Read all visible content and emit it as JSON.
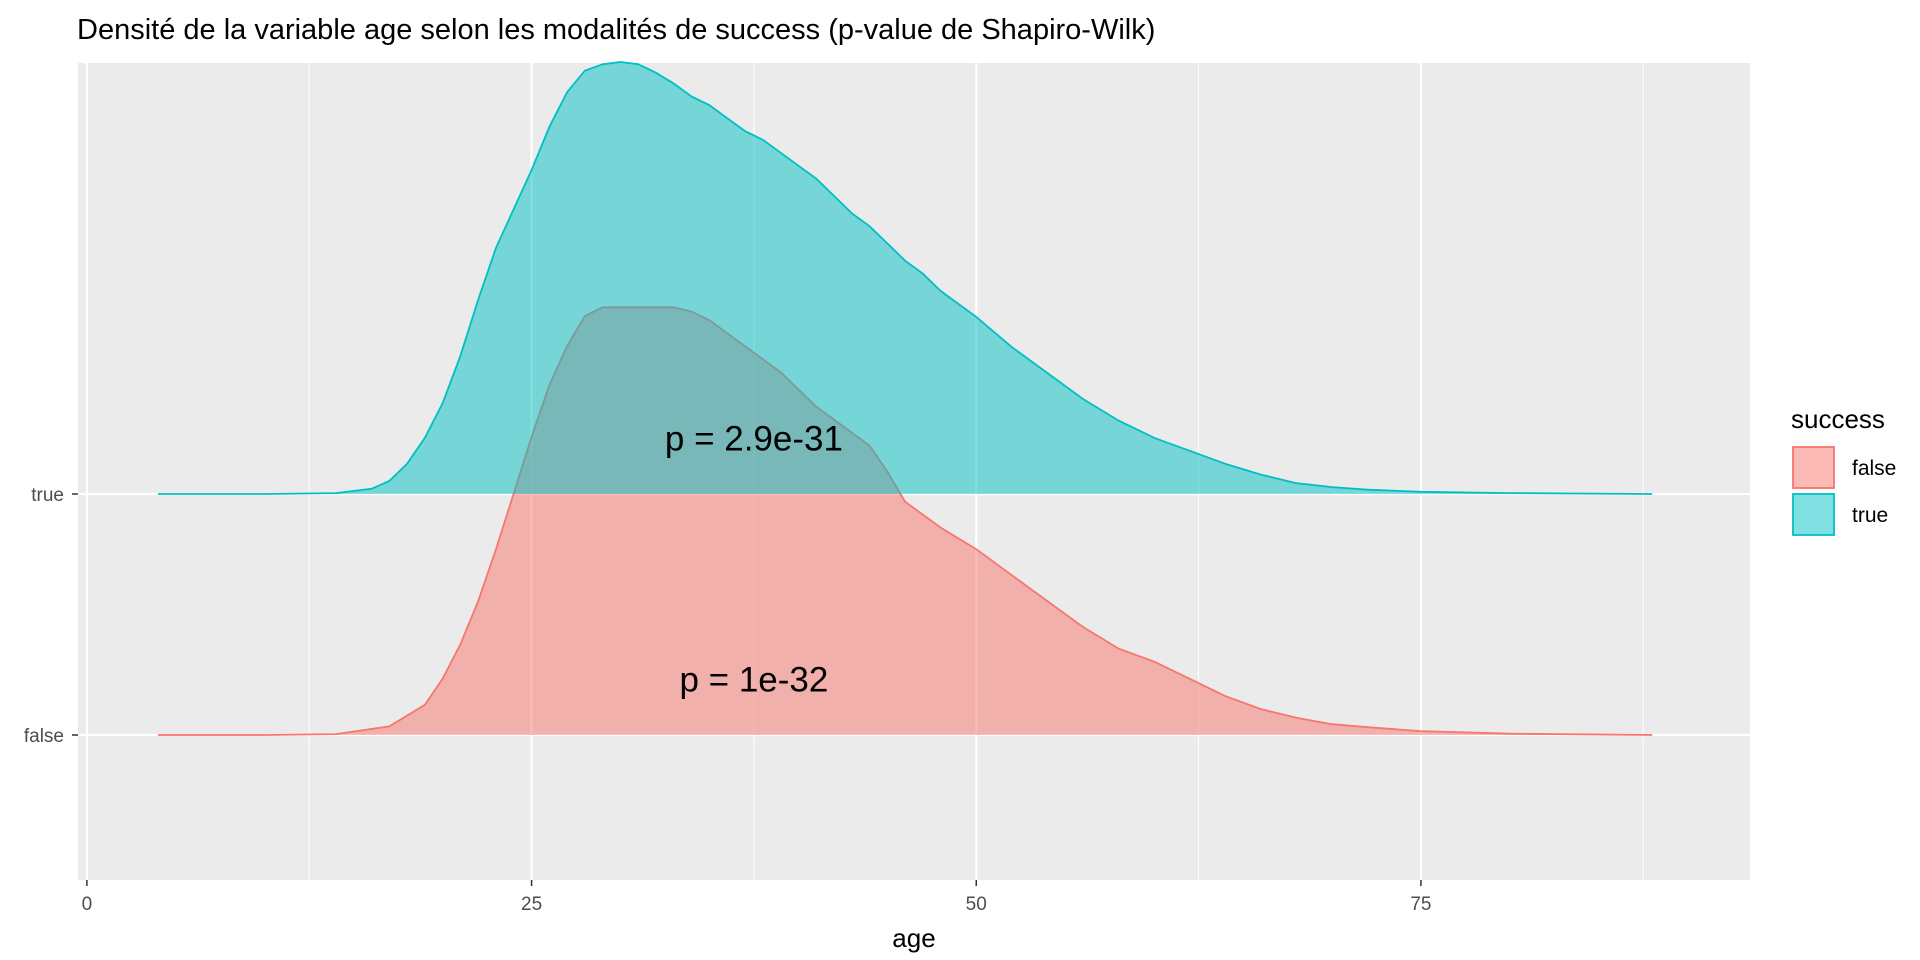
{
  "chart_data": {
    "type": "area",
    "subtype": "density-ridgeline",
    "title": "Densité de la variable age selon les modalités de success (p-value de Shapiro-Wilk)",
    "xlabel": "age",
    "ylabel": "",
    "xlim": [
      -0.5,
      93.5
    ],
    "x_ticks": [
      0,
      25,
      50,
      75
    ],
    "y_categories": [
      "false",
      "true"
    ],
    "grid": true,
    "legend": {
      "title": "success",
      "position": "right",
      "entries": [
        {
          "label": "false",
          "color": "#F8766D"
        },
        {
          "label": "true",
          "color": "#00BFC4"
        }
      ]
    },
    "series": [
      {
        "name": "false",
        "color": "#F8766D",
        "baseline_category": "false",
        "x": [
          4,
          10,
          14,
          17,
          19,
          20,
          21,
          22,
          23,
          24,
          25,
          26,
          27,
          28,
          29,
          30,
          31,
          32,
          33,
          34,
          35,
          36,
          37,
          38,
          39,
          40,
          41,
          42,
          43,
          44,
          45,
          46,
          48,
          50,
          52,
          54,
          56,
          58,
          60,
          62,
          64,
          66,
          68,
          70,
          72,
          75,
          80,
          88
        ],
        "density": [
          0,
          0,
          0.002,
          0.02,
          0.07,
          0.13,
          0.21,
          0.31,
          0.43,
          0.56,
          0.69,
          0.81,
          0.9,
          0.97,
          0.99,
          0.99,
          0.99,
          0.99,
          0.99,
          0.98,
          0.96,
          0.93,
          0.9,
          0.87,
          0.84,
          0.8,
          0.76,
          0.73,
          0.7,
          0.67,
          0.61,
          0.54,
          0.48,
          0.43,
          0.37,
          0.31,
          0.25,
          0.2,
          0.17,
          0.13,
          0.09,
          0.06,
          0.04,
          0.025,
          0.018,
          0.009,
          0.003,
          0
        ],
        "annotation": "p = 1e-32",
        "annotation_x": 37.5
      },
      {
        "name": "true",
        "color": "#00BFC4",
        "baseline_category": "true",
        "x": [
          4,
          10,
          14,
          16,
          17,
          18,
          19,
          20,
          21,
          22,
          23,
          24,
          25,
          26,
          27,
          28,
          29,
          30,
          31,
          32,
          33,
          34,
          35,
          36,
          37,
          38,
          39,
          40,
          41,
          42,
          43,
          44,
          45,
          46,
          47,
          48,
          50,
          52,
          54,
          56,
          58,
          60,
          62,
          64,
          66,
          68,
          70,
          72,
          75,
          80,
          88
        ],
        "density": [
          0,
          0,
          0.002,
          0.012,
          0.03,
          0.07,
          0.13,
          0.21,
          0.32,
          0.45,
          0.57,
          0.66,
          0.75,
          0.85,
          0.93,
          0.98,
          0.995,
          1.0,
          0.995,
          0.975,
          0.95,
          0.92,
          0.9,
          0.87,
          0.84,
          0.82,
          0.79,
          0.76,
          0.73,
          0.69,
          0.65,
          0.62,
          0.58,
          0.54,
          0.51,
          0.47,
          0.41,
          0.34,
          0.28,
          0.22,
          0.17,
          0.13,
          0.1,
          0.07,
          0.045,
          0.025,
          0.016,
          0.01,
          0.005,
          0.002,
          0
        ],
        "annotation": "p = 2.9e-31",
        "annotation_x": 37.5
      }
    ]
  }
}
